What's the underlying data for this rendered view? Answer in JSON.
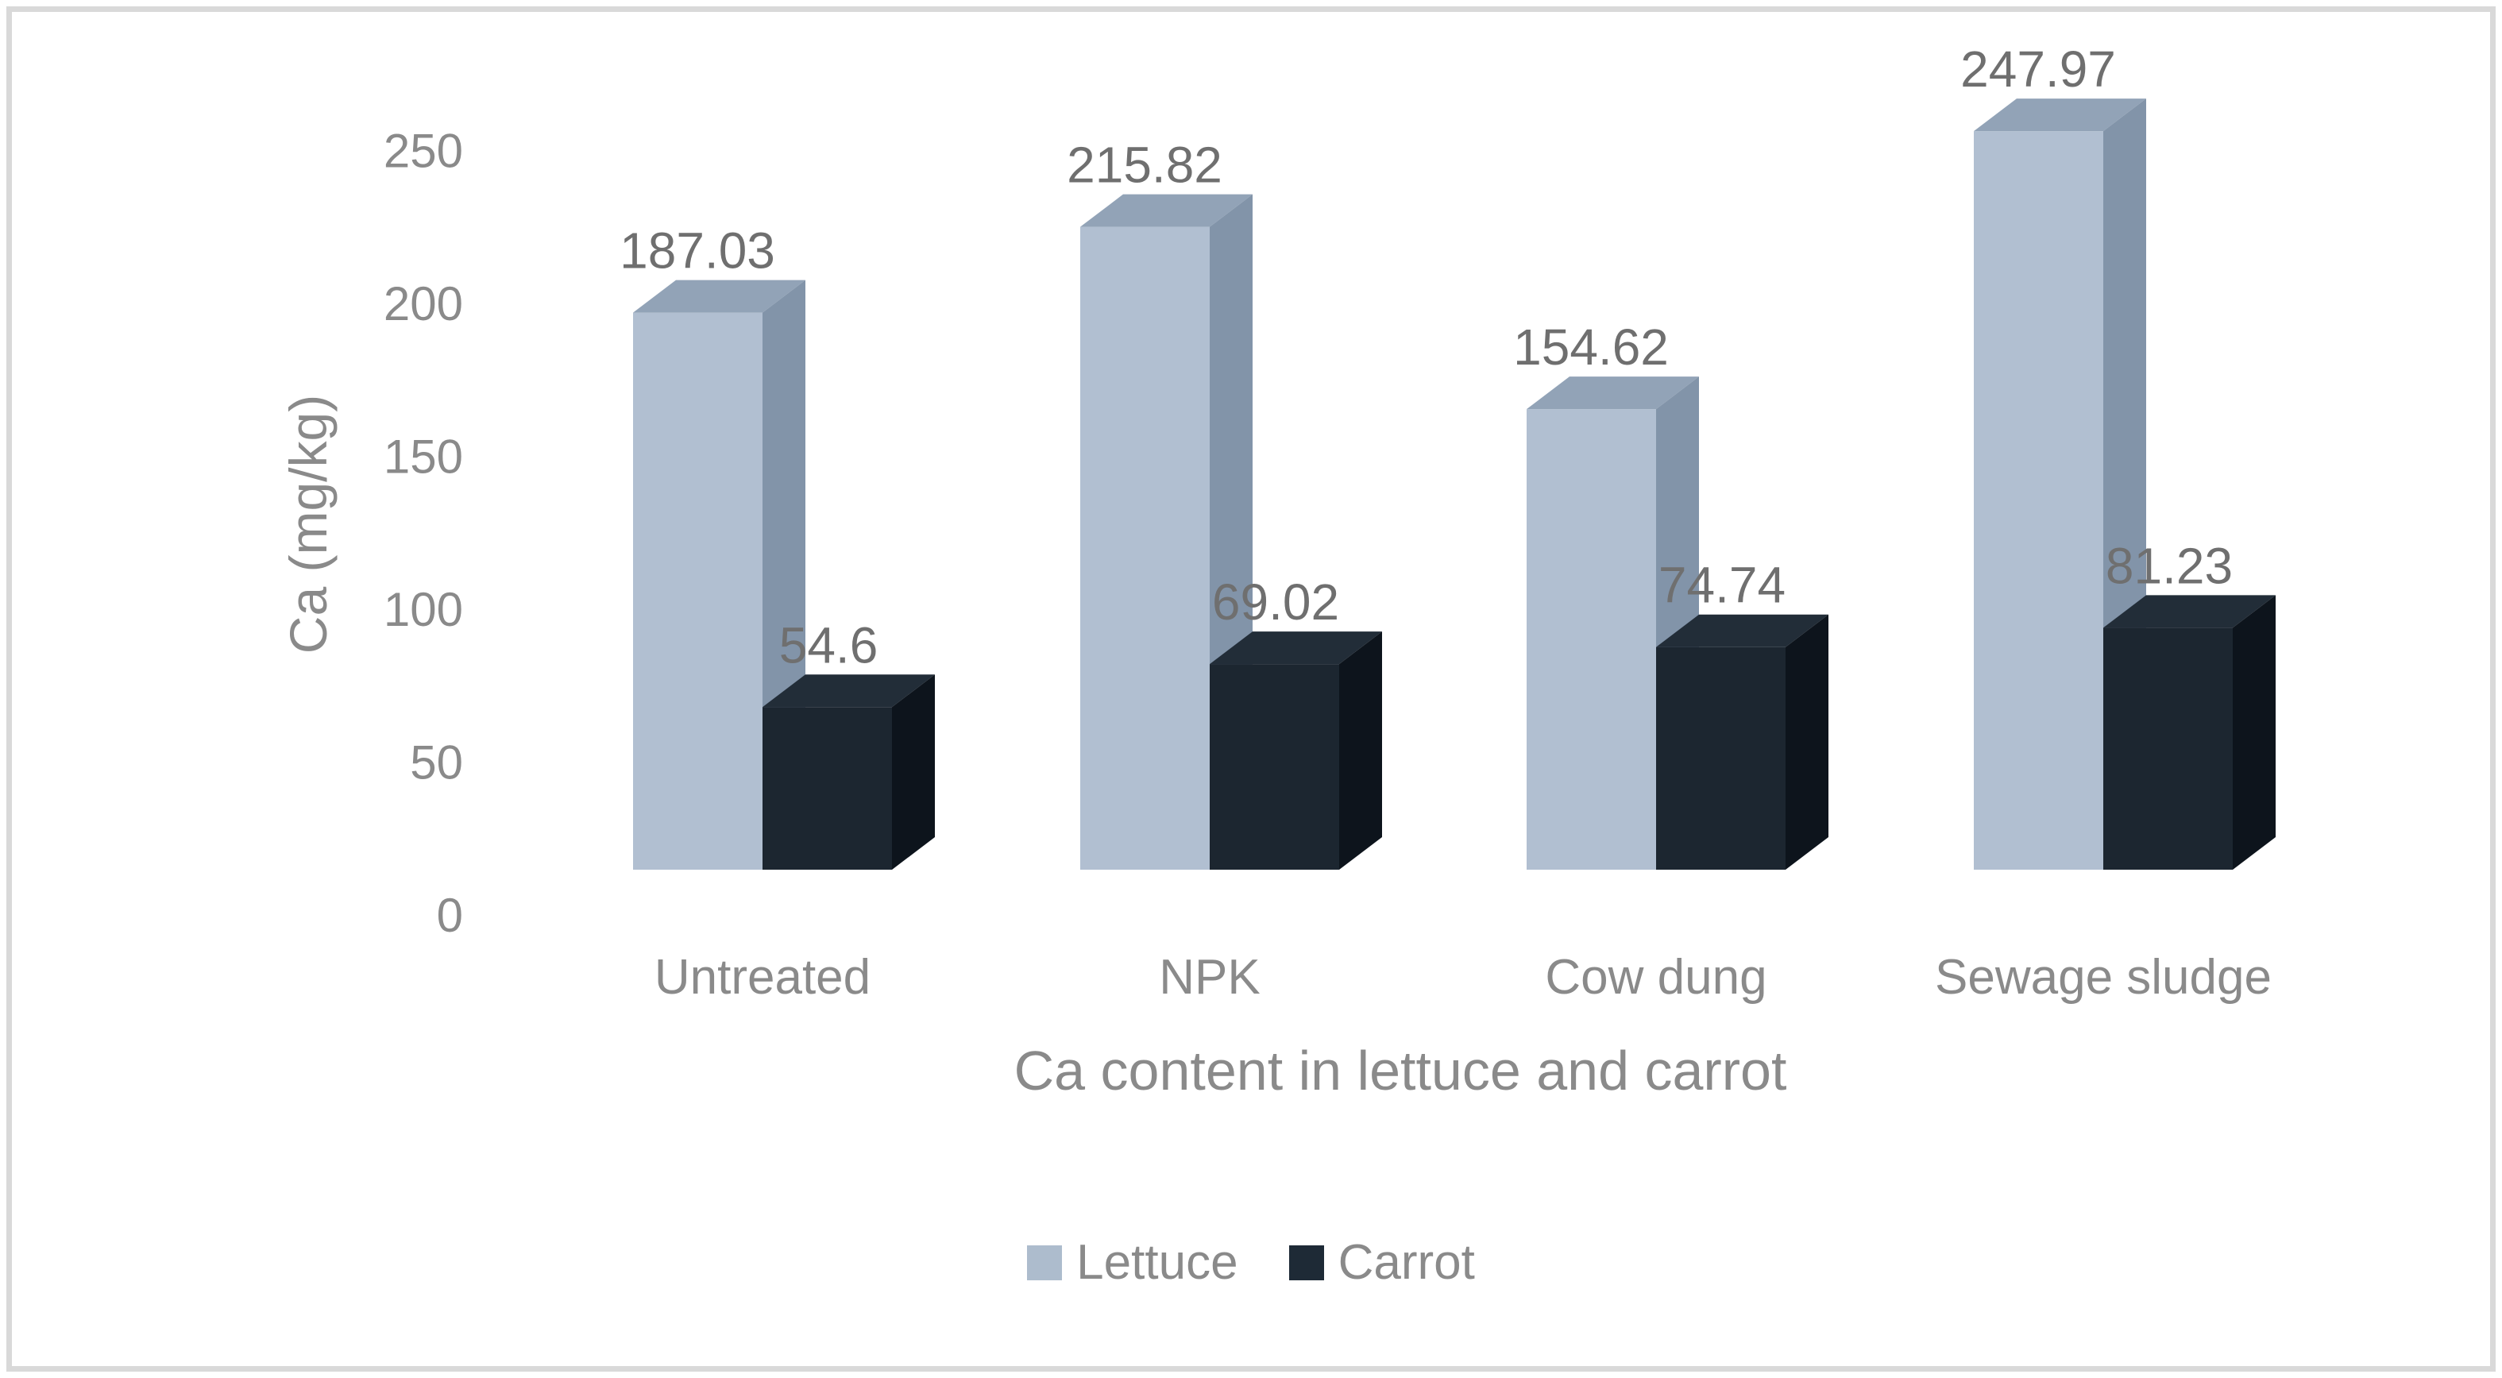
{
  "chart_data": {
    "type": "bar",
    "variant": "3d-clustered-column",
    "title": "",
    "xlabel": "Ca content in lettuce and carrot",
    "ylabel": "Ca (mg/kg)",
    "categories": [
      "Untreated",
      "NPK",
      "Cow dung",
      "Sewage sludge"
    ],
    "series": [
      {
        "name": "Lettuce",
        "values": [
          187.03,
          215.82,
          154.62,
          247.97
        ],
        "labels": [
          "187.03",
          "215.82",
          "154.62",
          "247.97"
        ],
        "color_front": "#b1bfd1",
        "color_top": "#92a3b7",
        "color_side": "#8294a9",
        "legend_color": "#adbccd"
      },
      {
        "name": "Carrot",
        "values": [
          54.6,
          69.02,
          74.74,
          81.23
        ],
        "labels": [
          "54.6",
          "69.02",
          "74.74",
          "81.23"
        ],
        "color_front": "#1c2630",
        "color_top": "#222d38",
        "color_side": "#0d141c",
        "legend_color": "#1e2a36"
      }
    ],
    "y_ticks": [
      0,
      50,
      100,
      150,
      200,
      250
    ],
    "ylim": [
      0,
      250
    ],
    "grid": false,
    "axis_lines": false,
    "legend_position": "bottom",
    "axis_text_color": "#8a8a8a",
    "data_label_color": "#6f6f6f",
    "border_color": "#d9d9d9",
    "background": "#ffffff"
  }
}
